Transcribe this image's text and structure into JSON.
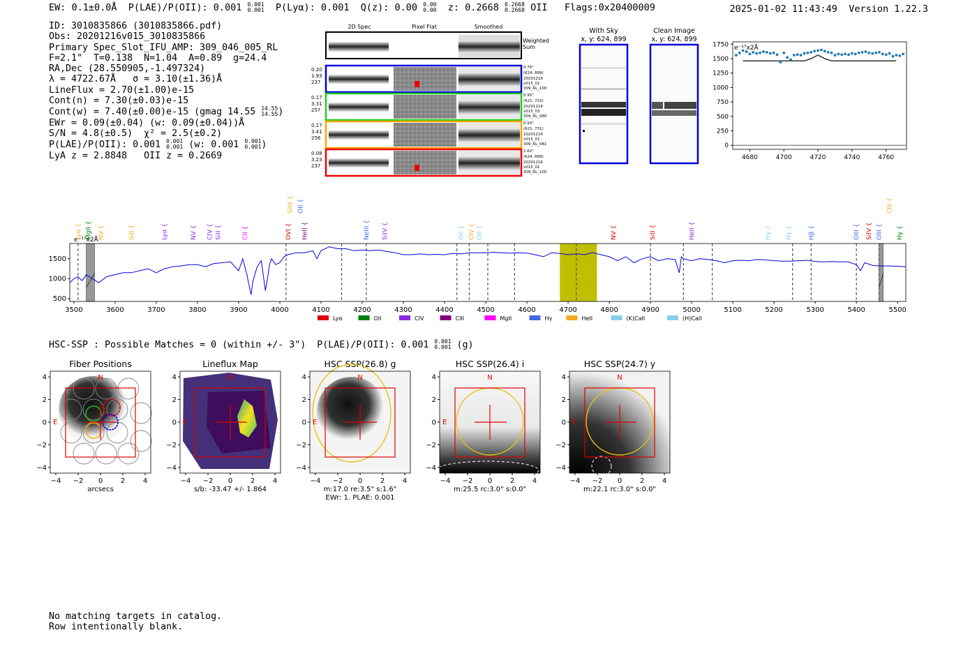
{
  "header": {
    "line": "EW: 0.1±0.0Å  P(LAE)/P(OII): 0.001",
    "plae_sup": "0.001",
    "plae_sub": "0.001",
    "plya": "P(Lyα): 0.001",
    "qz": "Q(z): 0.00",
    "qz_sup": "0.00",
    "qz_sub": "0.00",
    "z": "z: 0.2668",
    "z_sup": "0.2668",
    "z_sub": "0.2668",
    "z_line": "OII",
    "flags": "Flags:0x20400009",
    "datetime": "2025-01-02 11:43:49",
    "version": "Version 1.22.3"
  },
  "info": {
    "id": "ID: 3010835866 (3010835866.pdf)",
    "obs": "Obs: 20201216v015_3010835866",
    "primary": "Primary Spec_Slot_IFU_AMP: 309_046_005_RL",
    "fit": "F=2.1\"  T=0.138  N=1.04  A=0.89  g=24.4",
    "radec": "RA,Dec (28.550905,-1.497324)",
    "lambda": "λ = 4722.67Å   σ = 3.10(±1.36)Å",
    "lineflux": "LineFlux = 2.70(±1.00)e-15",
    "contn": "Cont(n) = 7.30(±0.03)e-15",
    "contw": "Cont(w) = 7.40(±0.00)e-15 (gmag 14.55",
    "contw_sup": "14.55",
    "contw_sub": "14.55",
    "ewr": "EWr = 0.09(±0.04) (w: 0.09(±0.04))Å",
    "sn": "S/N = 4.8(±0.5)  χ² = 2.5(±0.2)",
    "plae": "P(LAE)/P(OII): 0.001",
    "plae_sup": "0.001",
    "plae_sub": "0.001",
    "plae_w": "(w: 0.001",
    "plae_w_sup": "0.001",
    "plae_w_sub": "0.001",
    "lya": "LyA z = 2.8848   OII z = 0.2669"
  },
  "cutouts": {
    "col_2d": "2D Spec",
    "col_flat": "Pixel Flat",
    "col_smooth": "Smoothed",
    "weighted": "Weighted",
    "sum": "Sum",
    "rows": [
      {
        "color": "#0000dd",
        "l1": "0.20",
        "l2": "1.93",
        "l3": "237",
        "r1": "0.75\"",
        "r2": "(624, 899)",
        "r3": "20201216",
        "r4": "v015_02",
        "r5": "309_RL_100"
      },
      {
        "color": "#22cc22",
        "l1": "0.17",
        "l2": "3.31",
        "l3": "257",
        "r1": "0.95\"",
        "r2": "(621, 722)",
        "r3": "20201216",
        "r4": "v015_03",
        "r5": "309_RL_080"
      },
      {
        "color": "#ffa500",
        "l1": "0.17",
        "l2": "3.41",
        "l3": "256",
        "r1": "0.93\"",
        "r2": "(621, 731)",
        "r3": "20201216",
        "r4": "v015_01",
        "r5": "309_RL_081"
      },
      {
        "color": "#ee0000",
        "l1": "0.08",
        "l2": "3.23",
        "l3": "237",
        "r1": "1.62\"",
        "r2": "(624, 899)",
        "r3": "20201216",
        "r4": "v015_01",
        "r5": "309_RL_100"
      }
    ],
    "with_sky": "With Sky",
    "with_sky_xy": "x, y: 624, 899",
    "clean": "Clean Image",
    "clean_xy": "x, y: 624, 899"
  },
  "hsc": {
    "line": "HSC-SSP : Possible Matches = 0 (within +/- 3\")  P(LAE)/P(OII): 0.001",
    "sup": "0.001",
    "sub": "0.001",
    "band": "(g)"
  },
  "thumbs": [
    {
      "title": "Fiber Positions",
      "cap1": "arcsecs",
      "cap2": ""
    },
    {
      "title": "Lineflux Map",
      "cap1": "s/b: -33.47 +/- 1.864",
      "cap2": ""
    },
    {
      "title": "HSC SSP(26.8) g",
      "cap1": "m:17.0  re:3.5\"  s:1.6\"",
      "cap2": "EWr: 1. PLAE: 0.001"
    },
    {
      "title": "HSC SSP(26.4) i",
      "cap1": "m:25.5 rc:3.0\"  s:0.0\"",
      "cap2": ""
    },
    {
      "title": "HSC SSP(24.7) y",
      "cap1": "m:22.1 rc:3.0\"  s:0.0\"",
      "cap2": ""
    }
  ],
  "thumb_labels": {
    "north": "N",
    "east": "E",
    "tick_labels": [
      "−4",
      "−2",
      "0",
      "2",
      "4"
    ]
  },
  "footer": {
    "line1": "No matching targets in catalog.",
    "line2": "Row intentionally blank."
  },
  "chart_data": [
    {
      "type": "scatter",
      "title": "",
      "units_label": "e⁻¹⁷x2Å",
      "xlim": [
        4670,
        4772
      ],
      "ylim": [
        -70,
        1790
      ],
      "x_ticks": [
        4680,
        4700,
        4720,
        4740,
        4760
      ],
      "y_ticks": [
        0,
        250,
        500,
        750,
        1000,
        1250,
        1500,
        1750
      ],
      "points": {
        "x": [
          4672,
          4674,
          4676,
          4678,
          4680,
          4682,
          4684,
          4686,
          4688,
          4690,
          4692,
          4694,
          4696,
          4698,
          4700,
          4702,
          4704,
          4706,
          4708,
          4710,
          4712,
          4714,
          4716,
          4718,
          4720,
          4722,
          4724,
          4726,
          4728,
          4730,
          4732,
          4734,
          4736,
          4738,
          4740,
          4742,
          4744,
          4746,
          4748,
          4750,
          4752,
          4754,
          4756,
          4758,
          4760,
          4762,
          4764,
          4766,
          4768,
          4770
        ],
        "y": [
          1560,
          1600,
          1640,
          1620,
          1580,
          1610,
          1590,
          1600,
          1620,
          1610,
          1590,
          1600,
          1570,
          1440,
          1600,
          1520,
          1480,
          1560,
          1570,
          1560,
          1590,
          1600,
          1610,
          1630,
          1640,
          1650,
          1630,
          1610,
          1600,
          1560,
          1580,
          1570,
          1580,
          1570,
          1590,
          1580,
          1600,
          1610,
          1620,
          1600,
          1590,
          1600,
          1610,
          1580,
          1570,
          1590,
          1540,
          1560,
          1550,
          1580
        ]
      },
      "model": {
        "x": [
          4676,
          4712,
          4716,
          4720,
          4724,
          4728,
          4766
        ],
        "y": [
          1460,
          1460,
          1500,
          1560,
          1500,
          1460,
          1460
        ]
      }
    },
    {
      "type": "line",
      "title": "",
      "units_label": "e⁻¹⁷x2Å",
      "xlim": [
        3490,
        5520
      ],
      "ylim": [
        430,
        1880
      ],
      "x_ticks": [
        3500,
        3600,
        3700,
        3800,
        3900,
        4000,
        4100,
        4200,
        4300,
        4400,
        4500,
        4600,
        4700,
        4800,
        4900,
        5000,
        5100,
        5200,
        5300,
        5400,
        5500
      ],
      "y_ticks": [
        500,
        1000,
        1500
      ],
      "series": [
        {
          "name": "",
          "x": [
            3490,
            3500,
            3510,
            3520,
            3530,
            3545,
            3560,
            3580,
            3600,
            3620,
            3640,
            3660,
            3680,
            3700,
            3720,
            3740,
            3760,
            3780,
            3800,
            3820,
            3840,
            3860,
            3880,
            3900,
            3910,
            3920,
            3930,
            3935,
            3945,
            3955,
            3965,
            3970,
            3975,
            3980,
            3990,
            4000,
            4010,
            4020,
            4040,
            4060,
            4080,
            4090,
            4100,
            4110,
            4120,
            4140,
            4160,
            4180,
            4200,
            4220,
            4240,
            4260,
            4280,
            4300,
            4320,
            4340,
            4360,
            4380,
            4400,
            4420,
            4440,
            4460,
            4480,
            4500,
            4520,
            4540,
            4560,
            4580,
            4600,
            4620,
            4640,
            4660,
            4680,
            4700,
            4720,
            4740,
            4760,
            4780,
            4800,
            4820,
            4840,
            4860,
            4880,
            4900,
            4920,
            4940,
            4960,
            4970,
            4975,
            4980,
            5000,
            5020,
            5040,
            5060,
            5080,
            5100,
            5120,
            5140,
            5160,
            5180,
            5200,
            5220,
            5240,
            5260,
            5280,
            5300,
            5320,
            5340,
            5360,
            5380,
            5400,
            5410,
            5420,
            5440,
            5460,
            5480,
            5500,
            5520
          ],
          "y": [
            900,
            1000,
            1050,
            950,
            1100,
            1000,
            900,
            1050,
            1100,
            1150,
            1150,
            1200,
            1250,
            1150,
            1250,
            1300,
            1320,
            1350,
            1350,
            1300,
            1380,
            1400,
            1420,
            1200,
            1500,
            1100,
            600,
            950,
            1300,
            1450,
            700,
            1000,
            1350,
            1500,
            1350,
            1400,
            1550,
            1600,
            1650,
            1650,
            1700,
            1500,
            1700,
            1750,
            1800,
            1750,
            1750,
            1700,
            1720,
            1700,
            1720,
            1680,
            1650,
            1600,
            1600,
            1620,
            1600,
            1610,
            1600,
            1630,
            1620,
            1650,
            1650,
            1650,
            1660,
            1650,
            1640,
            1650,
            1640,
            1600,
            1550,
            1650,
            1630,
            1600,
            1620,
            1600,
            1650,
            1600,
            1550,
            1450,
            1550,
            1400,
            1500,
            1550,
            1450,
            1500,
            1480,
            1150,
            1550,
            1500,
            1450,
            1500,
            1480,
            1450,
            1400,
            1450,
            1460,
            1450,
            1480,
            1470,
            1450,
            1440,
            1440,
            1450,
            1460,
            1430,
            1420,
            1430,
            1420,
            1420,
            1350,
            1200,
            1400,
            1330,
            1320,
            1320,
            1310,
            1300
          ]
        }
      ],
      "highlight_band": [
        4680,
        4770
      ],
      "hatched": [
        [
          3530,
          3550
        ],
        [
          5455,
          5465
        ]
      ],
      "dashed_lines": [
        3510,
        4015,
        4150,
        4210,
        4430,
        4460,
        4505,
        4570,
        4720,
        4900,
        4980,
        5050,
        5245,
        5290,
        5400,
        5455
      ],
      "lines": [
        {
          "label": "Lyα",
          "x": 3510,
          "color": "#f4a81d",
          "level": 1
        },
        {
          "label": "MgII",
          "x": 3535,
          "color": "#008000",
          "level": 1
        },
        {
          "label": "NV",
          "x": 3565,
          "color": "#f4a81d",
          "level": 1
        },
        {
          "label": "SiII",
          "x": 3640,
          "color": "#f4a81d",
          "level": 1
        },
        {
          "label": "Lyα",
          "x": 3720,
          "color": "#8a2be2",
          "level": 1
        },
        {
          "label": "NV",
          "x": 3790,
          "color": "#8a2be2",
          "level": 1
        },
        {
          "label": "CIV",
          "x": 3830,
          "color": "#8a2be2",
          "level": 1
        },
        {
          "label": "SiII",
          "x": 3850,
          "color": "#8a2be2",
          "level": 1
        },
        {
          "label": "CII",
          "x": 3915,
          "color": "#ff00ff",
          "level": 1
        },
        {
          "label": "SiIV",
          "x": 4025,
          "color": "#f4a81d",
          "level": 3
        },
        {
          "label": "OVI",
          "x": 4020,
          "color": "#dd0000",
          "level": 1
        },
        {
          "label": "OII",
          "x": 4050,
          "color": "#4169e1",
          "level": 3
        },
        {
          "label": "HeII",
          "x": 4060,
          "color": "#8b008b",
          "level": 1
        },
        {
          "label": "NeIII",
          "x": 4210,
          "color": "#4169e1",
          "level": 1
        },
        {
          "label": "SiIV",
          "x": 4255,
          "color": "#8a2be2",
          "level": 1
        },
        {
          "label": "OII",
          "x": 4440,
          "color": "#87ceeb",
          "level": 1
        },
        {
          "label": "CIV",
          "x": 4465,
          "color": "#f4a81d",
          "level": 1
        },
        {
          "label": "OII",
          "x": 4485,
          "color": "#87ceeb",
          "level": 1
        },
        {
          "label": "NV",
          "x": 4810,
          "color": "#dd0000",
          "level": 1
        },
        {
          "label": "SiII",
          "x": 4905,
          "color": "#dd0000",
          "level": 1
        },
        {
          "label": "HeII",
          "x": 5000,
          "color": "#8a2be2",
          "level": 1
        },
        {
          "label": "Hγ",
          "x": 5185,
          "color": "#87ceeb",
          "level": 1
        },
        {
          "label": "Hγ",
          "x": 5235,
          "color": "#87ceeb",
          "level": 1
        },
        {
          "label": "Hβ",
          "x": 5290,
          "color": "#4169e1",
          "level": 1
        },
        {
          "label": "OIII",
          "x": 5400,
          "color": "#4169e1",
          "level": 1
        },
        {
          "label": "SiIV",
          "x": 5430,
          "color": "#dd0000",
          "level": 1
        },
        {
          "label": "OIII",
          "x": 5455,
          "color": "#4169e1",
          "level": 1
        },
        {
          "label": "CIII",
          "x": 5480,
          "color": "#f4a81d",
          "level": 3
        },
        {
          "label": "Hγ",
          "x": 5505,
          "color": "#008000",
          "level": 1
        }
      ],
      "legend": [
        {
          "label": "Lyα",
          "color": "#dd0000"
        },
        {
          "label": "OII",
          "color": "#008000"
        },
        {
          "label": "CIV",
          "color": "#8a2be2"
        },
        {
          "label": "CIII",
          "color": "#800080"
        },
        {
          "label": "MgII",
          "color": "#ff00ff"
        },
        {
          "label": "Hγ",
          "color": "#4169e1"
        },
        {
          "label": "HeII",
          "color": "#f4a81d"
        },
        {
          "label": "(K)CaII",
          "color": "#87ceeb"
        },
        {
          "label": "(H)CaII",
          "color": "#87ceeb"
        }
      ]
    }
  ]
}
